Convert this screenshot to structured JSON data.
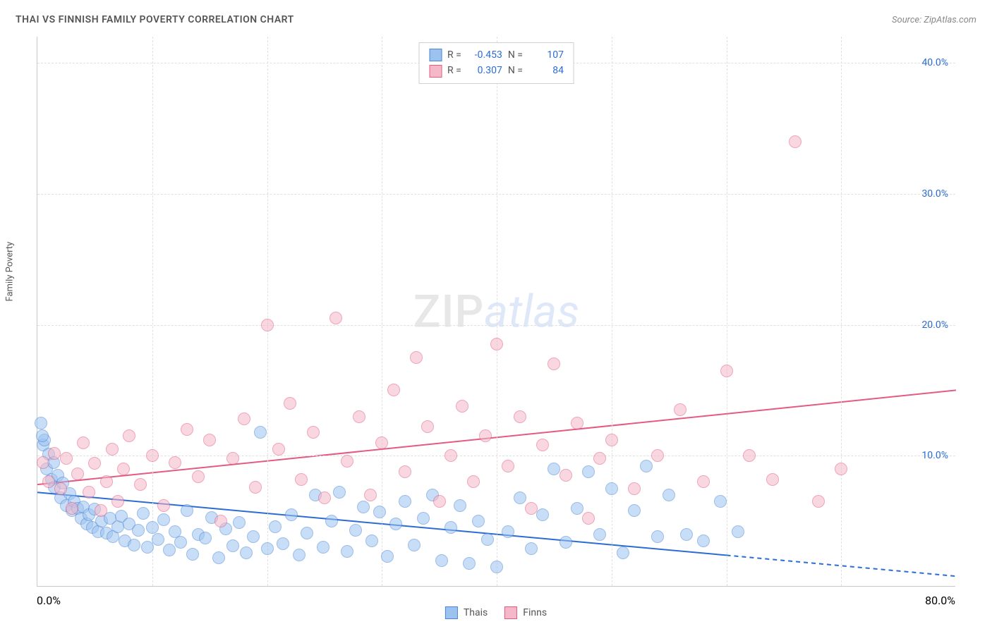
{
  "title": "THAI VS FINNISH FAMILY POVERTY CORRELATION CHART",
  "source": "Source: ZipAtlas.com",
  "ylabel": "Family Poverty",
  "watermark": {
    "part1": "ZIP",
    "part2": "atlas"
  },
  "chart": {
    "type": "scatter",
    "xlim": [
      0,
      80
    ],
    "ylim": [
      0,
      42
    ],
    "xticks": {
      "start": "0.0%",
      "end": "80.0%"
    },
    "yticks": [
      {
        "value": 10,
        "label": "10.0%"
      },
      {
        "value": 20,
        "label": "20.0%"
      },
      {
        "value": 30,
        "label": "30.0%"
      },
      {
        "value": 40,
        "label": "40.0%"
      }
    ],
    "vgrid_values": [
      10,
      20,
      30,
      40,
      50,
      60,
      70
    ],
    "grid_color": "#e0e0e0",
    "axis_color": "#c9c9c9",
    "background_color": "#ffffff",
    "marker_radius": 9,
    "marker_opacity": 0.55,
    "series": [
      {
        "name": "Thais",
        "fill": "#9cc3f0",
        "stroke": "#4a86d8",
        "R": "-0.453",
        "N": "107",
        "trendline": {
          "x1": 0,
          "y1": 7.2,
          "x2": 60,
          "y2": 2.4,
          "dash_after_x": 60,
          "x2_dash": 80,
          "y2_dash": 0.8,
          "color": "#2b6cd4",
          "width": 2
        },
        "points": [
          [
            0.3,
            12.5
          ],
          [
            0.5,
            10.8
          ],
          [
            0.6,
            11.2
          ],
          [
            0.8,
            9.0
          ],
          [
            0.4,
            11.5
          ],
          [
            1.0,
            10.1
          ],
          [
            1.2,
            8.2
          ],
          [
            1.4,
            9.5
          ],
          [
            1.5,
            7.6
          ],
          [
            1.8,
            8.5
          ],
          [
            2.0,
            6.8
          ],
          [
            2.2,
            7.9
          ],
          [
            2.5,
            6.2
          ],
          [
            2.8,
            7.1
          ],
          [
            3.0,
            5.8
          ],
          [
            3.2,
            6.5
          ],
          [
            3.5,
            6.0
          ],
          [
            3.8,
            5.2
          ],
          [
            4.0,
            6.1
          ],
          [
            4.3,
            4.8
          ],
          [
            4.5,
            5.5
          ],
          [
            4.8,
            4.5
          ],
          [
            5.0,
            5.9
          ],
          [
            5.3,
            4.2
          ],
          [
            5.6,
            5.0
          ],
          [
            6.0,
            4.1
          ],
          [
            6.3,
            5.2
          ],
          [
            6.6,
            3.8
          ],
          [
            7.0,
            4.6
          ],
          [
            7.3,
            5.4
          ],
          [
            7.6,
            3.5
          ],
          [
            8.0,
            4.8
          ],
          [
            8.4,
            3.2
          ],
          [
            8.8,
            4.3
          ],
          [
            9.2,
            5.6
          ],
          [
            9.6,
            3.0
          ],
          [
            10.0,
            4.5
          ],
          [
            10.5,
            3.6
          ],
          [
            11.0,
            5.1
          ],
          [
            11.5,
            2.8
          ],
          [
            12.0,
            4.2
          ],
          [
            12.5,
            3.4
          ],
          [
            13.0,
            5.8
          ],
          [
            13.5,
            2.5
          ],
          [
            14.0,
            4.0
          ],
          [
            14.6,
            3.7
          ],
          [
            15.2,
            5.3
          ],
          [
            15.8,
            2.2
          ],
          [
            16.4,
            4.4
          ],
          [
            17.0,
            3.1
          ],
          [
            17.6,
            4.9
          ],
          [
            18.2,
            2.6
          ],
          [
            18.8,
            3.8
          ],
          [
            19.4,
            11.8
          ],
          [
            20.0,
            2.9
          ],
          [
            20.7,
            4.6
          ],
          [
            21.4,
            3.3
          ],
          [
            22.1,
            5.5
          ],
          [
            22.8,
            2.4
          ],
          [
            23.5,
            4.1
          ],
          [
            24.2,
            7.0
          ],
          [
            24.9,
            3.0
          ],
          [
            25.6,
            5.0
          ],
          [
            26.3,
            7.2
          ],
          [
            27.0,
            2.7
          ],
          [
            27.7,
            4.3
          ],
          [
            28.4,
            6.1
          ],
          [
            29.1,
            3.5
          ],
          [
            29.8,
            5.7
          ],
          [
            30.5,
            2.3
          ],
          [
            31.2,
            4.8
          ],
          [
            32.0,
            6.5
          ],
          [
            32.8,
            3.2
          ],
          [
            33.6,
            5.2
          ],
          [
            34.4,
            7.0
          ],
          [
            35.2,
            2.0
          ],
          [
            36.0,
            4.5
          ],
          [
            36.8,
            6.2
          ],
          [
            37.6,
            1.8
          ],
          [
            38.4,
            5.0
          ],
          [
            39.2,
            3.6
          ],
          [
            40.0,
            1.5
          ],
          [
            41.0,
            4.2
          ],
          [
            42.0,
            6.8
          ],
          [
            43.0,
            2.9
          ],
          [
            44.0,
            5.5
          ],
          [
            45.0,
            9.0
          ],
          [
            46.0,
            3.4
          ],
          [
            47.0,
            6.0
          ],
          [
            48.0,
            8.8
          ],
          [
            49.0,
            4.0
          ],
          [
            50.0,
            7.5
          ],
          [
            51.0,
            2.6
          ],
          [
            52.0,
            5.8
          ],
          [
            53.0,
            9.2
          ],
          [
            54.0,
            3.8
          ],
          [
            55.0,
            7.0
          ],
          [
            56.5,
            4.0
          ],
          [
            58.0,
            3.5
          ],
          [
            59.5,
            6.5
          ],
          [
            61.0,
            4.2
          ]
        ]
      },
      {
        "name": "Finns",
        "fill": "#f5b8c9",
        "stroke": "#e35b82",
        "R": "0.307",
        "N": "84",
        "trendline": {
          "x1": 0,
          "y1": 7.8,
          "x2": 80,
          "y2": 15.0,
          "color": "#e35b82",
          "width": 2
        },
        "points": [
          [
            0.5,
            9.5
          ],
          [
            1.0,
            8.0
          ],
          [
            1.5,
            10.2
          ],
          [
            2.0,
            7.5
          ],
          [
            2.5,
            9.8
          ],
          [
            3.0,
            6.0
          ],
          [
            3.5,
            8.6
          ],
          [
            4.0,
            11.0
          ],
          [
            4.5,
            7.2
          ],
          [
            5.0,
            9.4
          ],
          [
            5.5,
            5.8
          ],
          [
            6.0,
            8.0
          ],
          [
            6.5,
            10.5
          ],
          [
            7.0,
            6.5
          ],
          [
            7.5,
            9.0
          ],
          [
            8.0,
            11.5
          ],
          [
            9.0,
            7.8
          ],
          [
            10.0,
            10.0
          ],
          [
            11.0,
            6.2
          ],
          [
            12.0,
            9.5
          ],
          [
            13.0,
            12.0
          ],
          [
            14.0,
            8.4
          ],
          [
            15.0,
            11.2
          ],
          [
            16.0,
            5.0
          ],
          [
            17.0,
            9.8
          ],
          [
            18.0,
            12.8
          ],
          [
            19.0,
            7.6
          ],
          [
            20.0,
            20.0
          ],
          [
            21.0,
            10.5
          ],
          [
            22.0,
            14.0
          ],
          [
            23.0,
            8.2
          ],
          [
            24.0,
            11.8
          ],
          [
            25.0,
            6.8
          ],
          [
            26.0,
            20.5
          ],
          [
            27.0,
            9.6
          ],
          [
            28.0,
            13.0
          ],
          [
            29.0,
            7.0
          ],
          [
            30.0,
            11.0
          ],
          [
            31.0,
            15.0
          ],
          [
            32.0,
            8.8
          ],
          [
            33.0,
            17.5
          ],
          [
            34.0,
            12.2
          ],
          [
            35.0,
            6.5
          ],
          [
            36.0,
            10.0
          ],
          [
            37.0,
            13.8
          ],
          [
            38.0,
            8.0
          ],
          [
            39.0,
            11.5
          ],
          [
            40.0,
            18.5
          ],
          [
            41.0,
            9.2
          ],
          [
            42.0,
            13.0
          ],
          [
            43.0,
            6.0
          ],
          [
            44.0,
            10.8
          ],
          [
            45.0,
            17.0
          ],
          [
            46.0,
            8.5
          ],
          [
            47.0,
            12.5
          ],
          [
            48.0,
            5.2
          ],
          [
            49.0,
            9.8
          ],
          [
            50.0,
            11.2
          ],
          [
            52.0,
            7.5
          ],
          [
            54.0,
            10.0
          ],
          [
            56.0,
            13.5
          ],
          [
            58.0,
            8.0
          ],
          [
            60.0,
            16.5
          ],
          [
            62.0,
            10.0
          ],
          [
            64.0,
            8.2
          ],
          [
            66.0,
            34.0
          ],
          [
            68.0,
            6.5
          ],
          [
            70.0,
            9.0
          ]
        ]
      }
    ]
  },
  "legend_bottom": [
    {
      "label": "Thais",
      "fill": "#9cc3f0",
      "stroke": "#4a86d8"
    },
    {
      "label": "Finns",
      "fill": "#f5b8c9",
      "stroke": "#e35b82"
    }
  ],
  "axis_label_color": "#2b6cd4",
  "text_color": "#555"
}
